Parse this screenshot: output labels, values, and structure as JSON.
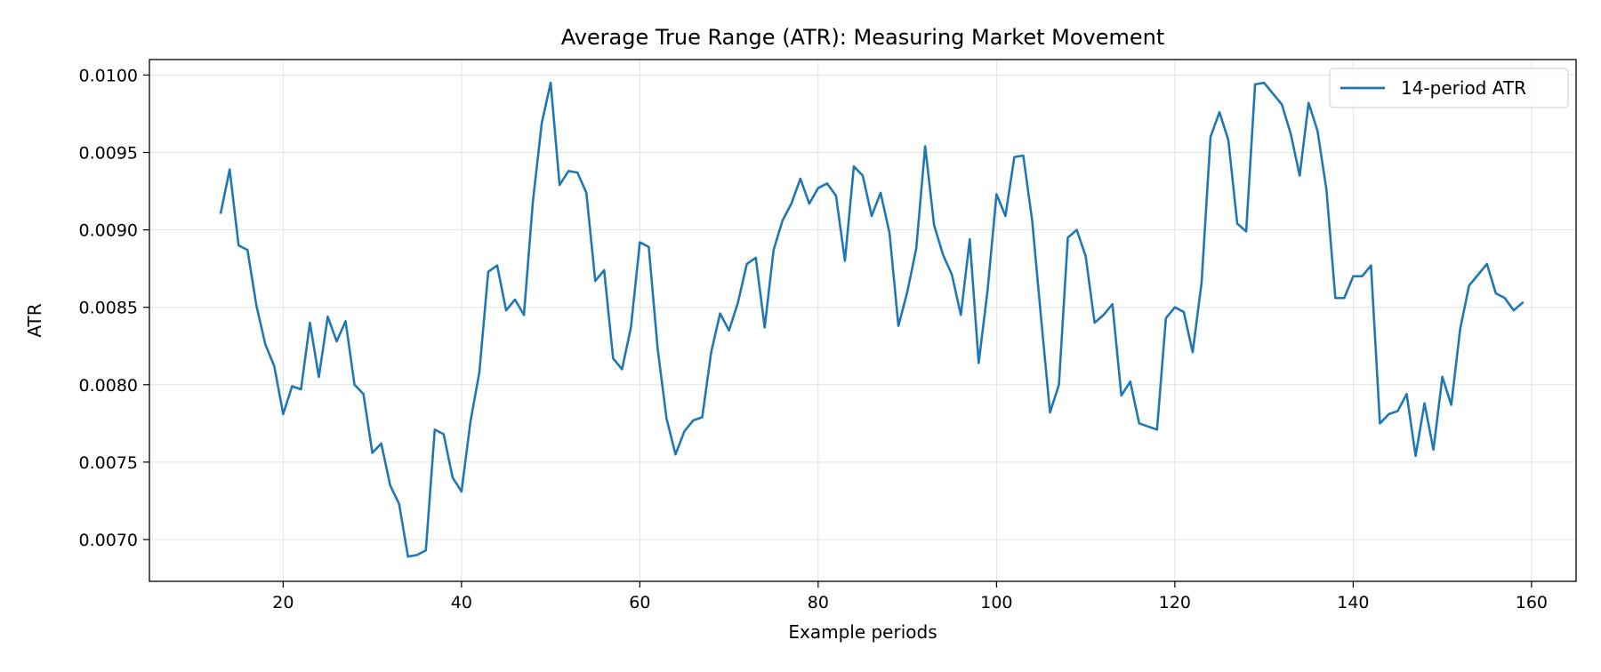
{
  "chart_data": {
    "type": "line",
    "title": "Average True Range (ATR): Measuring Market Movement",
    "xlabel": "Example periods",
    "ylabel": "ATR",
    "xlim": [
      5,
      165
    ],
    "ylim": [
      0.00673,
      0.0101
    ],
    "xticks": [
      20,
      40,
      60,
      80,
      100,
      120,
      140,
      160
    ],
    "yticks": [
      0.007,
      0.0075,
      0.008,
      0.0085,
      0.009,
      0.0095,
      0.01
    ],
    "ytick_labels": [
      "0.0070",
      "0.0075",
      "0.0080",
      "0.0085",
      "0.0090",
      "0.0095",
      "0.0100"
    ],
    "grid": true,
    "legend_position": "top-right",
    "series": [
      {
        "name": "14-period ATR",
        "color": "#1f77b4",
        "x_start": 13,
        "values": [
          0.00911,
          0.00939,
          0.0089,
          0.00887,
          0.00851,
          0.00826,
          0.00812,
          0.00781,
          0.00799,
          0.00797,
          0.0084,
          0.00805,
          0.00844,
          0.00828,
          0.00841,
          0.008,
          0.00794,
          0.00756,
          0.00762,
          0.00735,
          0.00723,
          0.00689,
          0.0069,
          0.00693,
          0.00771,
          0.00768,
          0.0074,
          0.00731,
          0.00776,
          0.00808,
          0.00873,
          0.00877,
          0.00848,
          0.00855,
          0.00845,
          0.00918,
          0.00969,
          0.00995,
          0.00929,
          0.00938,
          0.00937,
          0.00924,
          0.00867,
          0.00874,
          0.00817,
          0.0081,
          0.00837,
          0.00892,
          0.00889,
          0.00823,
          0.00778,
          0.00755,
          0.0077,
          0.00777,
          0.00779,
          0.00821,
          0.00846,
          0.00835,
          0.00853,
          0.00878,
          0.00882,
          0.00837,
          0.00887,
          0.00906,
          0.00917,
          0.00933,
          0.00917,
          0.00927,
          0.0093,
          0.00922,
          0.0088,
          0.00941,
          0.00935,
          0.00909,
          0.00924,
          0.00898,
          0.00838,
          0.0086,
          0.00888,
          0.00954,
          0.00903,
          0.00884,
          0.00871,
          0.00845,
          0.00894,
          0.00814,
          0.00861,
          0.00923,
          0.00909,
          0.00947,
          0.00948,
          0.00906,
          0.00843,
          0.00782,
          0.008,
          0.00895,
          0.009,
          0.00883,
          0.0084,
          0.00845,
          0.00852,
          0.00793,
          0.00802,
          0.00775,
          0.00773,
          0.00771,
          0.00843,
          0.0085,
          0.00847,
          0.00821,
          0.00866,
          0.0096,
          0.00976,
          0.00958,
          0.00904,
          0.00899,
          0.00994,
          0.00995,
          0.00988,
          0.00981,
          0.00962,
          0.00935,
          0.00982,
          0.00964,
          0.00926,
          0.00856,
          0.00856,
          0.0087,
          0.0087,
          0.00877,
          0.00775,
          0.00781,
          0.00783,
          0.00794,
          0.00754,
          0.00788,
          0.00758,
          0.00805,
          0.00787,
          0.00836,
          0.00864,
          0.00871,
          0.00878,
          0.00859,
          0.00856,
          0.00848,
          0.00853
        ]
      }
    ]
  }
}
